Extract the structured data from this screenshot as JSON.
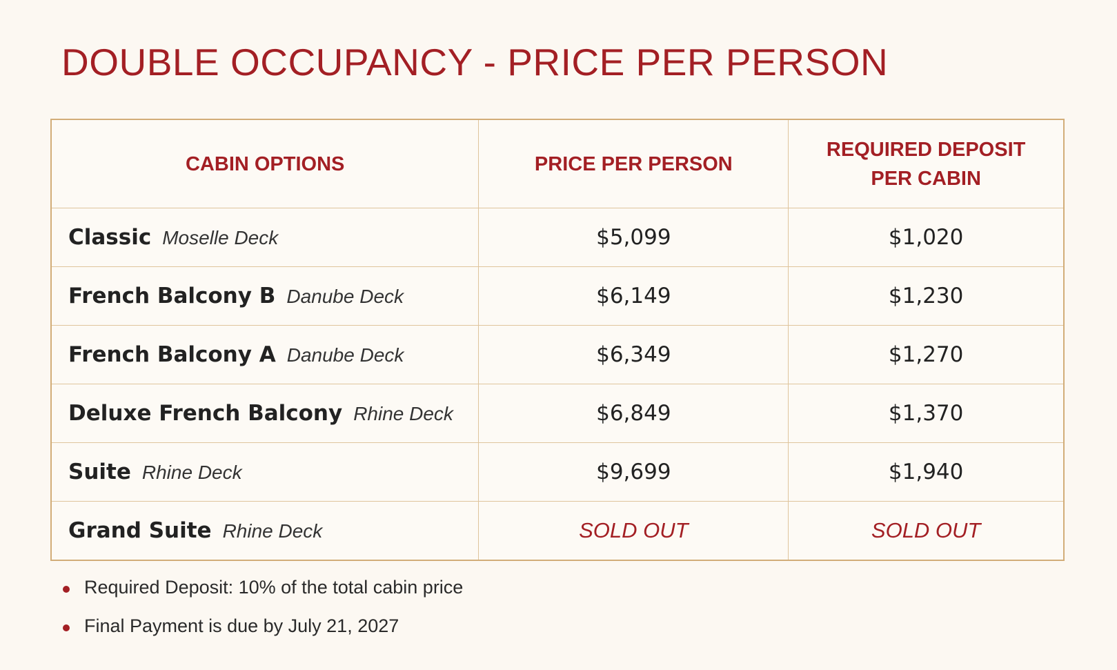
{
  "title": "DOUBLE OCCUPANCY - PRICE PER PERSON",
  "table": {
    "header": [
      "CABIN OPTIONS",
      "PRICE PER PERSON",
      "REQUIRED DEPOSIT PER CABIN"
    ],
    "rows": [
      {
        "cabin": "Classic",
        "deck": "Moselle Deck",
        "price": "$5,099",
        "deposit": "$1,020"
      },
      {
        "cabin": "French Balcony B",
        "deck": "Danube Deck",
        "price": "$6,149",
        "deposit": "$1,230"
      },
      {
        "cabin": "French Balcony A",
        "deck": "Danube Deck",
        "price": "$6,349",
        "deposit": "$1,270"
      },
      {
        "cabin": "Deluxe French Balcony",
        "deck": "Rhine Deck",
        "price": "$6,849",
        "deposit": "$1,370"
      },
      {
        "cabin": "Suite",
        "deck": "Rhine Deck",
        "price": "$9,699",
        "deposit": "$1,940"
      },
      {
        "cabin": "Grand Suite",
        "deck": "Rhine Deck",
        "price": "SOLD OUT",
        "deposit": "SOLD OUT"
      }
    ]
  },
  "notes": [
    "Required Deposit: 10% of the total cabin price",
    "Final Payment is due by July 21, 2027"
  ]
}
